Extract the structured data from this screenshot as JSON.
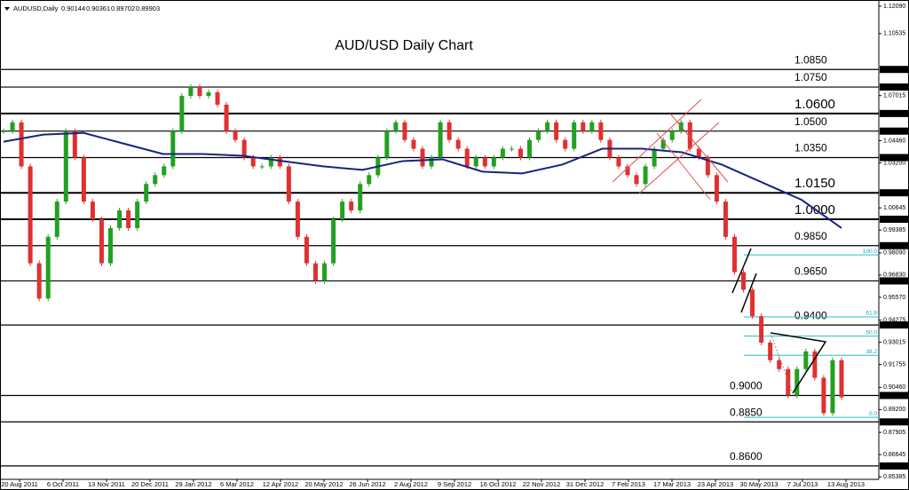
{
  "chart_data": {
    "type": "candlestick",
    "title": "AUD/USD Daily Chart",
    "quote": {
      "symbol": "AUDUSD,Daily",
      "values": [
        0.90144,
        0.90361,
        0.89702,
        0.89903
      ]
    },
    "ylim": [
      0.8524,
      1.1244
    ],
    "yticks": [
      {
        "value": 1.1209,
        "label": "1.12090"
      },
      {
        "value": 1.10535,
        "label": "1.10535"
      },
      {
        "value": 1.07015,
        "label": "1.07015"
      },
      {
        "value": 1.0446,
        "label": "1.04460"
      },
      {
        "value": 1.032,
        "label": "1.03200"
      },
      {
        "value": 1.00645,
        "label": "1.00645"
      },
      {
        "value": 0.99385,
        "label": "0.99385"
      },
      {
        "value": 0.9809,
        "label": "0.98090"
      },
      {
        "value": 0.9683,
        "label": "0.96830"
      },
      {
        "value": 0.9557,
        "label": "0.95570"
      },
      {
        "value": 0.94275,
        "label": "0.94275"
      },
      {
        "value": 0.93015,
        "label": "0.93015"
      },
      {
        "value": 0.91755,
        "label": "0.91755"
      },
      {
        "value": 0.9046,
        "label": "0.90460"
      },
      {
        "value": 0.892,
        "label": "0.89200"
      },
      {
        "value": 0.87905,
        "label": "0.87905"
      },
      {
        "value": 0.86645,
        "label": "0.86645"
      },
      {
        "value": 0.85385,
        "label": "0.85385"
      }
    ],
    "x_labels": [
      "20 Aug 2011",
      "6 Oct 2011",
      "13 Nov 2011",
      "20 Dec 2011",
      "29 Jan 2012",
      "6 Mar 2012",
      "12 Apr 2012",
      "20 May 2012",
      "26 Jun 2012",
      "2 Aug 2012",
      "9 Sep 2012",
      "16 Oct 2012",
      "22 Nov 2012",
      "31 Dec 2012",
      "7 Feb 2013",
      "17 Mar 2013",
      "23 Apr 2013",
      "30 May 2013",
      "7 Jul 2013",
      "13 Aug 2013"
    ],
    "levels": [
      {
        "value": 1.085,
        "label": "1.0850",
        "axis_label": "1.08500",
        "emphasis": false
      },
      {
        "value": 1.075,
        "label": "1.0750",
        "axis_label": "1.07500",
        "emphasis": false
      },
      {
        "value": 1.06,
        "label": "1.0600",
        "axis_label": "1.06000",
        "emphasis": true
      },
      {
        "value": 1.05,
        "label": "1.0500",
        "axis_label": "1.05000",
        "emphasis": false
      },
      {
        "value": 1.035,
        "label": "1.0350",
        "axis_label": "1.03500",
        "emphasis": false
      },
      {
        "value": 1.015,
        "label": "1.0150",
        "axis_label": "1.01500",
        "emphasis": true
      },
      {
        "value": 1.0,
        "label": "1.0000",
        "axis_label": "1.00000",
        "emphasis": true
      },
      {
        "value": 0.985,
        "label": "0.9850",
        "axis_label": "0.98500",
        "emphasis": false
      },
      {
        "value": 0.965,
        "label": "0.9650",
        "axis_label": "0.96500",
        "emphasis": false
      },
      {
        "value": 0.94,
        "label": "0.9400",
        "axis_label": "0.94000",
        "emphasis": false
      },
      {
        "value": 0.9,
        "label": "0.9000",
        "axis_label": "0.90000",
        "emphasis": false
      },
      {
        "value": 0.885,
        "label": "0.8850",
        "axis_label": "0.88500",
        "emphasis": false
      },
      {
        "value": 0.86,
        "label": "0.8600",
        "axis_label": "0.86000",
        "emphasis": false
      }
    ],
    "fib_levels": [
      {
        "label": "100.0",
        "value": 0.9798
      },
      {
        "label": "61.8",
        "value": 0.9446
      },
      {
        "label": "50.0",
        "value": 0.9337
      },
      {
        "label": "38.2",
        "value": 0.9228
      },
      {
        "label": "0.0",
        "value": 0.8876
      }
    ],
    "series": [
      {
        "name": "AUDUSD",
        "up_color": "#22a022",
        "down_color": "#e03030",
        "values": [
          1.05,
          1.055,
          1.03,
          0.975,
          0.955,
          0.99,
          1.01,
          1.05,
          1.035,
          1.01,
          1.0,
          0.975,
          0.995,
          1.005,
          0.995,
          1.01,
          1.02,
          1.025,
          1.03,
          1.05,
          1.07,
          1.075,
          1.07,
          1.072,
          1.065,
          1.05,
          1.045,
          1.035,
          1.03,
          1.03,
          1.035,
          1.03,
          1.01,
          0.99,
          0.975,
          0.965,
          0.975,
          1.0,
          1.01,
          1.005,
          1.02,
          1.025,
          1.035,
          1.05,
          1.055,
          1.045,
          1.04,
          1.03,
          1.035,
          1.055,
          1.045,
          1.04,
          1.03,
          1.035,
          1.03,
          1.035,
          1.04,
          1.04,
          1.035,
          1.045,
          1.05,
          1.055,
          1.045,
          1.04,
          1.055,
          1.05,
          1.055,
          1.045,
          1.035,
          1.03,
          1.025,
          1.02,
          1.03,
          1.04,
          1.045,
          1.05,
          1.055,
          1.04,
          1.035,
          1.025,
          1.01,
          0.99,
          0.97,
          0.96,
          0.945,
          0.93,
          0.92,
          0.915,
          0.9,
          0.915,
          0.925,
          0.91,
          0.89,
          0.92,
          0.899
        ]
      },
      {
        "name": "Moving Average",
        "color": "#1a237e",
        "values": [
          1.044,
          1.048,
          1.049,
          1.043,
          1.037,
          1.037,
          1.036,
          1.033,
          1.03,
          1.028,
          1.033,
          1.034,
          1.027,
          1.026,
          1.031,
          1.04,
          1.04,
          1.038,
          1.031,
          1.021,
          1.011,
          0.995
        ]
      }
    ]
  }
}
